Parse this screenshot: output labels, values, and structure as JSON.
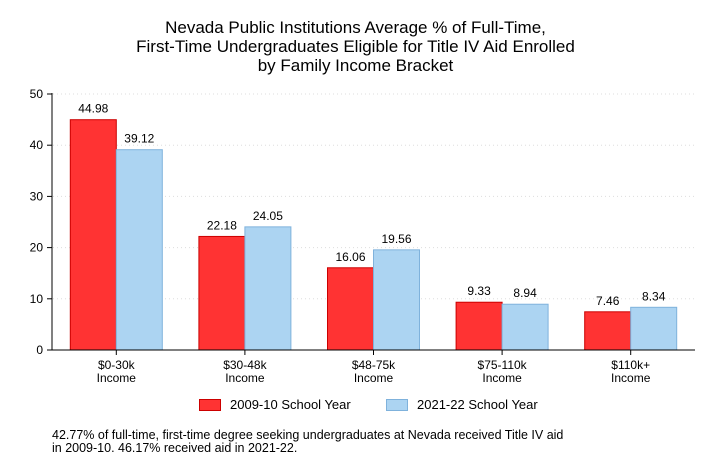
{
  "chart_data": {
    "type": "bar",
    "title_lines": [
      "Nevada Public Institutions Average % of Full-Time,",
      "First-Time Undergraduates Eligible for Title IV Aid Enrolled",
      "by Family Income Bracket"
    ],
    "categories": [
      [
        "$0-30k",
        "Income"
      ],
      [
        "$30-48k",
        "Income"
      ],
      [
        "$48-75k",
        "Income"
      ],
      [
        "$75-110k",
        "Income"
      ],
      [
        "$110k+",
        "Income"
      ]
    ],
    "series": [
      {
        "name": "2009-10 School Year",
        "values": [
          44.98,
          22.18,
          16.06,
          9.33,
          7.46
        ],
        "labels": [
          "44.98",
          "22.18",
          "16.06",
          "9.33",
          "7.46"
        ],
        "color": "#ff3333",
        "stroke": "#cc0000"
      },
      {
        "name": "2021-22 School Year",
        "values": [
          39.12,
          24.05,
          19.56,
          8.94,
          8.34
        ],
        "labels": [
          "39.12",
          "24.05",
          "19.56",
          "8.94",
          "8.34"
        ],
        "color": "#acd4f2",
        "stroke": "#7fb2dc"
      }
    ],
    "ylim": [
      0,
      50
    ],
    "yticks": [
      0,
      10,
      20,
      30,
      40,
      50
    ],
    "ytick_labels": [
      "0",
      "10",
      "20",
      "30",
      "40",
      "50"
    ],
    "grid": true,
    "legend_position": "bottom"
  },
  "footnote_lines": [
    "42.77% of full-time, first-time degree seeking undergraduates at Nevada received Title IV aid",
    "in 2009-10. 46.17% received aid in 2021-22."
  ]
}
